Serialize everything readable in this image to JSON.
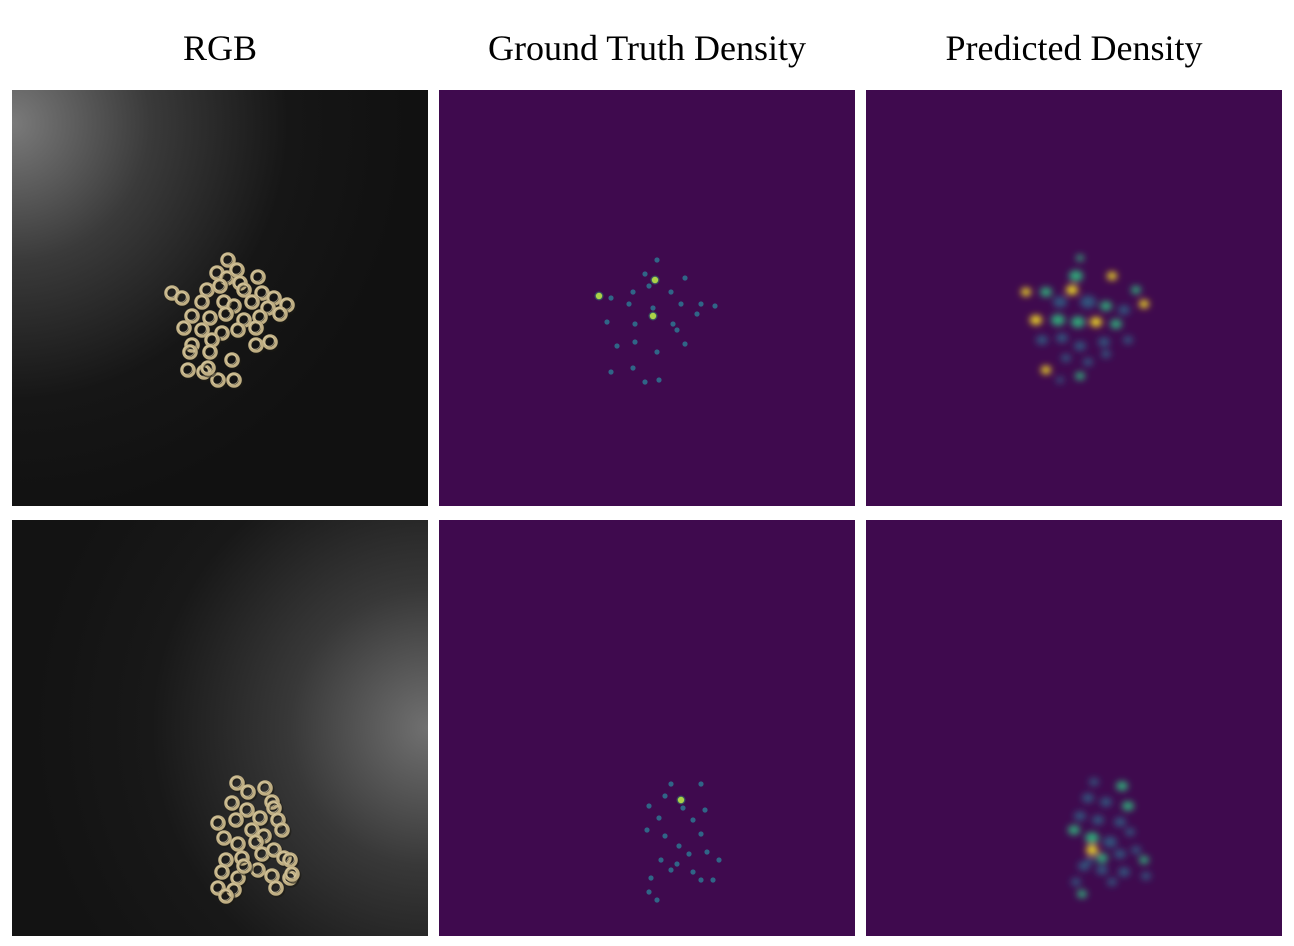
{
  "columns": [
    {
      "title": "RGB"
    },
    {
      "title": "Ground Truth Density"
    },
    {
      "title": "Predicted Density"
    }
  ],
  "rows": [
    {
      "light": "top-left",
      "rgb_alt": "scattered brass washers on dark surface",
      "washer_color": "#bfae83"
    },
    {
      "light": "right",
      "rgb_alt": "scattered brass washers on dark surface",
      "washer_color": "#bfae83"
    }
  ],
  "colors": {
    "density_background": "#3f0a4e",
    "density_low": "#2f6f8e",
    "density_mid": "#2fb47c",
    "density_high": "#fde725"
  }
}
